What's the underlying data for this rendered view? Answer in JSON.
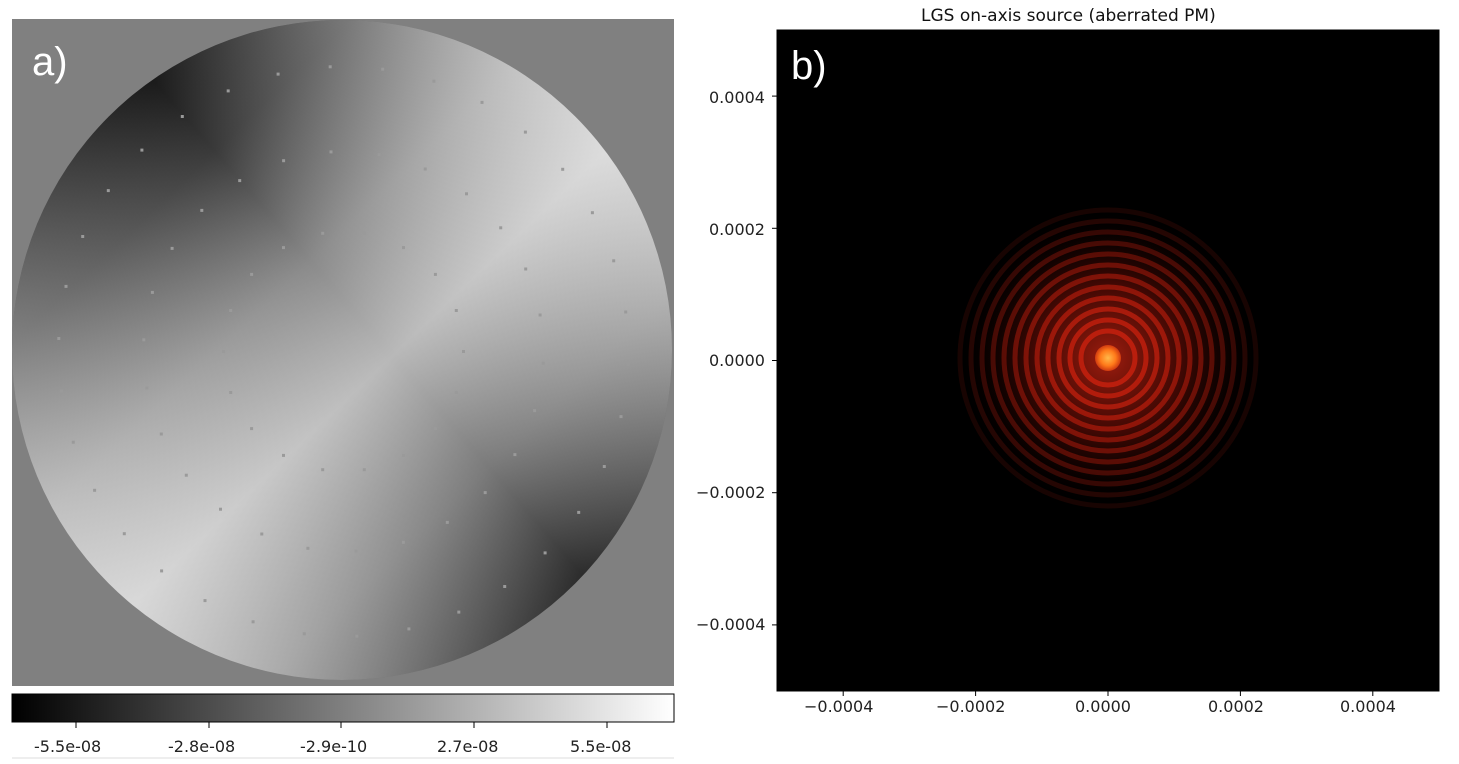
{
  "panel_a": {
    "label": "a)",
    "colorbar": {
      "cmap": "gray",
      "ticks": [
        "-5.5e-08",
        "-2.8e-08",
        "-2.9e-10",
        "2.7e-08",
        "5.5e-08"
      ]
    }
  },
  "panel_b": {
    "label": "b)",
    "chart_data": {
      "type": "heatmap",
      "title": "LGS on-axis source (aberrated PM)",
      "xlabel": "",
      "ylabel": "",
      "xlim": [
        -0.0005,
        0.0005
      ],
      "ylim": [
        -0.0005,
        0.0005
      ],
      "x_ticks": [
        "−0.0004",
        "−0.0002",
        "0.0000",
        "0.0002",
        "0.0004"
      ],
      "y_ticks": [
        "0.0004",
        "0.0002",
        "0.0000",
        "−0.0002",
        "−0.0004"
      ],
      "cmap": "hot",
      "background_color": "#000000",
      "core_color": "#ff7a1a"
    }
  }
}
